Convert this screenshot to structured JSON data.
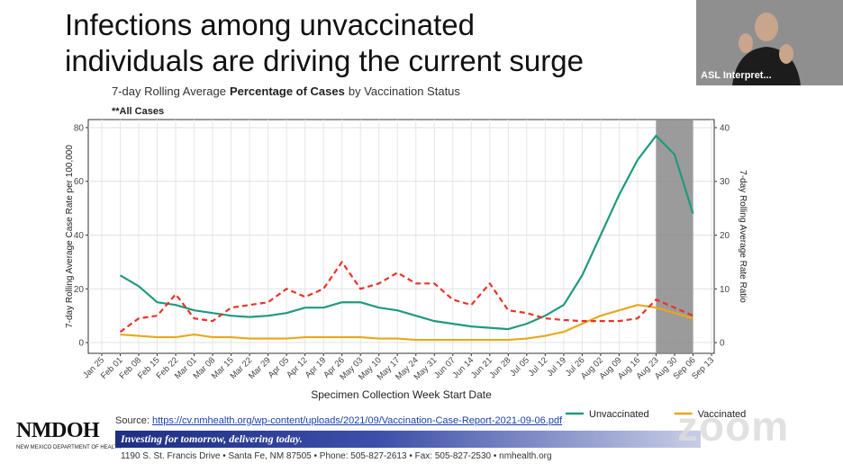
{
  "slide": {
    "title_lines": [
      "Infections among unvaccinated",
      "individuals are driving the current surge"
    ]
  },
  "video": {
    "label": "ASL Interpret..."
  },
  "chart_data": {
    "type": "line",
    "title_parts": [
      "7-day Rolling Average",
      "Percentage of Cases",
      "by Vaccination Status"
    ],
    "annotation": "**All Cases",
    "x_label": "Specimen Collection Week Start Date",
    "y_label": "7-day Rolling Average Case Rate per 100,000",
    "y2_label": "7-day Rolling Average Rate Ratio",
    "categories": [
      "Jan 25",
      "Feb 01",
      "Feb 08",
      "Feb 15",
      "Feb 22",
      "Mar 01",
      "Mar 08",
      "Mar 15",
      "Mar 22",
      "Mar 29",
      "Apr 05",
      "Apr 12",
      "Apr 19",
      "Apr 26",
      "May 03",
      "May 10",
      "May 17",
      "May 24",
      "May 31",
      "Jun 07",
      "Jun 14",
      "Jun 21",
      "Jun 28",
      "Jul 05",
      "Jul 12",
      "Jul 19",
      "Jul 26",
      "Aug 02",
      "Aug 09",
      "Aug 16",
      "Aug 23",
      "Aug 30",
      "Sep 06",
      "Sep 13"
    ],
    "ylim": [
      -4,
      83
    ],
    "yticks": [
      0,
      20,
      40,
      60,
      80
    ],
    "y2lim": [
      -2,
      41.5
    ],
    "y2ticks": [
      0,
      10,
      20,
      30,
      40
    ],
    "grid": true,
    "highlight": {
      "from": "Aug 23",
      "to": "Sep 06"
    },
    "series": [
      {
        "name": "Unvaccinated",
        "color": "#1f9a7e",
        "values": [
          null,
          25,
          21,
          15,
          14,
          12,
          11,
          10,
          9.5,
          10,
          11,
          13,
          13,
          15,
          15,
          13,
          12,
          10,
          8,
          7,
          6,
          5.5,
          5,
          7,
          10,
          14,
          25,
          40,
          55,
          68,
          77,
          70,
          48,
          null
        ]
      },
      {
        "name": "Vaccinated",
        "color": "#e8a81c",
        "values": [
          null,
          3,
          2.5,
          2,
          2,
          3,
          2,
          2,
          1.5,
          1.5,
          1.5,
          2,
          2,
          2,
          2,
          1.5,
          1.5,
          1,
          1,
          1,
          1,
          1,
          1,
          1.5,
          2.5,
          4,
          7,
          10,
          12,
          14,
          13,
          11,
          9,
          null
        ]
      },
      {
        "color": "#e8332a",
        "dashed": true,
        "axis": "y2",
        "values": [
          null,
          2,
          4.5,
          5,
          9,
          4.5,
          4,
          6.5,
          7,
          7.5,
          10,
          8.5,
          10,
          15,
          10,
          11,
          13,
          11,
          11,
          8,
          7,
          11,
          6,
          5.5,
          4.5,
          4.2,
          4,
          4,
          4,
          4.5,
          8,
          6.5,
          5,
          null
        ]
      }
    ]
  },
  "source": {
    "label": "Source:",
    "url": "https://cv.nmhealth.org/wp-content/uploads/2021/09/Vaccination-Case-Report-2021-09-06.pdf"
  },
  "footer": {
    "logo": "NMDOH",
    "department": "NEW MEXICO DEPARTMENT OF HEALTH",
    "tagline": "Investing for tomorrow, delivering today.",
    "address": "1190 S. St. Francis Drive • Santa Fe, NM 87505 • Phone: 505-827-2613 • Fax: 505-827-2530 • nmhealth.org"
  },
  "watermark": "zoom"
}
